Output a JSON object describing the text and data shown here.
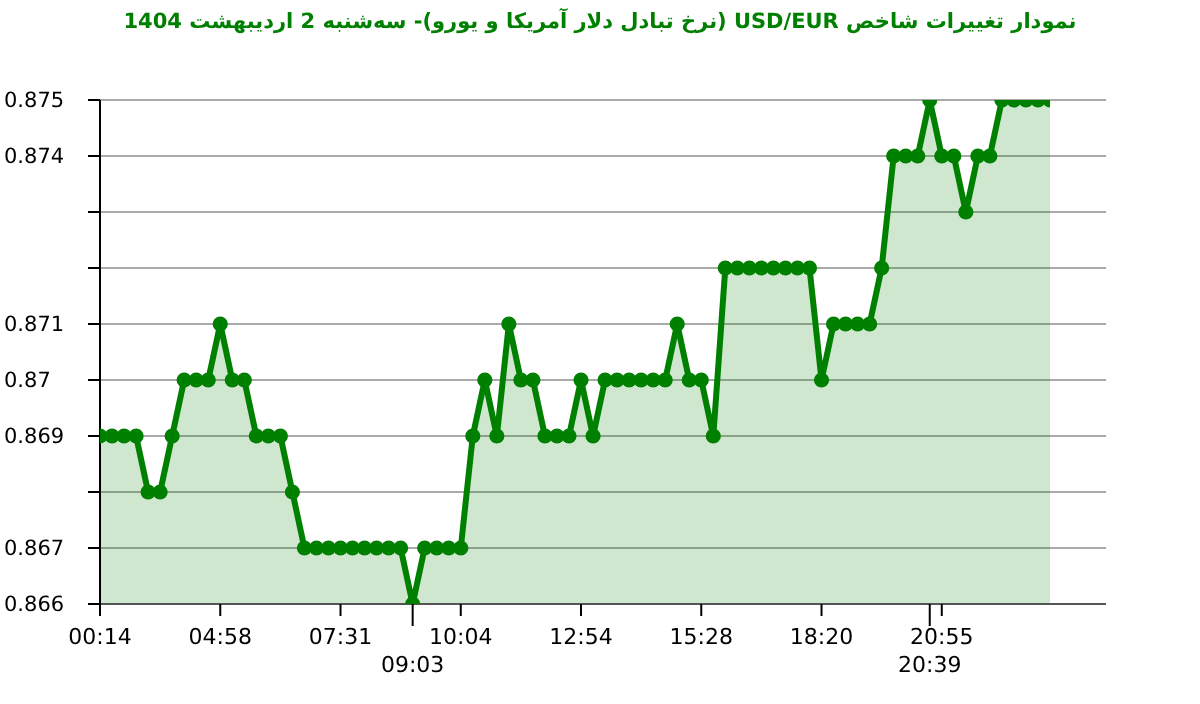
{
  "chart_data": {
    "type": "area",
    "title": "نمودار تغییرات شاخص USD/EUR (نرخ تبادل دلار آمریکا و یورو)- سه‌شنبه  2 اردیبهشت 1404",
    "categories": [
      "00:14",
      null,
      null,
      null,
      null,
      null,
      null,
      null,
      null,
      null,
      "04:58",
      null,
      null,
      null,
      null,
      null,
      null,
      null,
      null,
      null,
      "07:31",
      null,
      null,
      null,
      null,
      null,
      "09:03",
      null,
      null,
      null,
      "10:04",
      null,
      null,
      null,
      null,
      null,
      null,
      null,
      null,
      null,
      "12:54",
      null,
      null,
      null,
      null,
      null,
      null,
      null,
      null,
      null,
      "15:28",
      null,
      null,
      null,
      null,
      null,
      null,
      null,
      null,
      null,
      "18:20",
      null,
      null,
      null,
      null,
      null,
      null,
      null,
      null,
      "20:39",
      "20:55",
      null,
      null,
      null,
      null,
      null,
      null,
      null,
      null,
      null
    ],
    "series": [
      {
        "color": "#008000",
        "values": [
          0.869,
          0.869,
          0.869,
          0.869,
          0.868,
          0.868,
          0.869,
          0.87,
          0.87,
          0.87,
          0.871,
          0.87,
          0.87,
          0.869,
          0.869,
          0.869,
          0.868,
          0.867,
          0.867,
          0.867,
          0.867,
          0.867,
          0.867,
          0.867,
          0.867,
          0.867,
          0.866,
          0.867,
          0.867,
          0.867,
          0.867,
          0.869,
          0.87,
          0.869,
          0.871,
          0.87,
          0.87,
          0.869,
          0.869,
          0.869,
          0.87,
          0.869,
          0.87,
          0.87,
          0.87,
          0.87,
          0.87,
          0.87,
          0.871,
          0.87,
          0.87,
          0.869,
          0.872,
          0.872,
          0.872,
          0.872,
          0.872,
          0.872,
          0.872,
          0.872,
          0.87,
          0.871,
          0.871,
          0.871,
          0.871,
          0.872,
          0.874,
          0.874,
          0.874,
          0.875,
          0.874,
          0.874,
          0.873,
          0.874,
          0.874,
          0.875,
          0.875,
          0.875,
          0.875,
          0.875
        ]
      }
    ],
    "ylim": [
      0.866,
      0.875
    ],
    "yticks": [
      0.866,
      0.867,
      {
        "value": 0.868,
        "label": null
      },
      0.869,
      0.87,
      0.871,
      {
        "value": 0.872,
        "label": null
      },
      {
        "value": 0.873,
        "label": null
      },
      0.874,
      0.875
    ],
    "grid": "y",
    "marker": "circle"
  }
}
